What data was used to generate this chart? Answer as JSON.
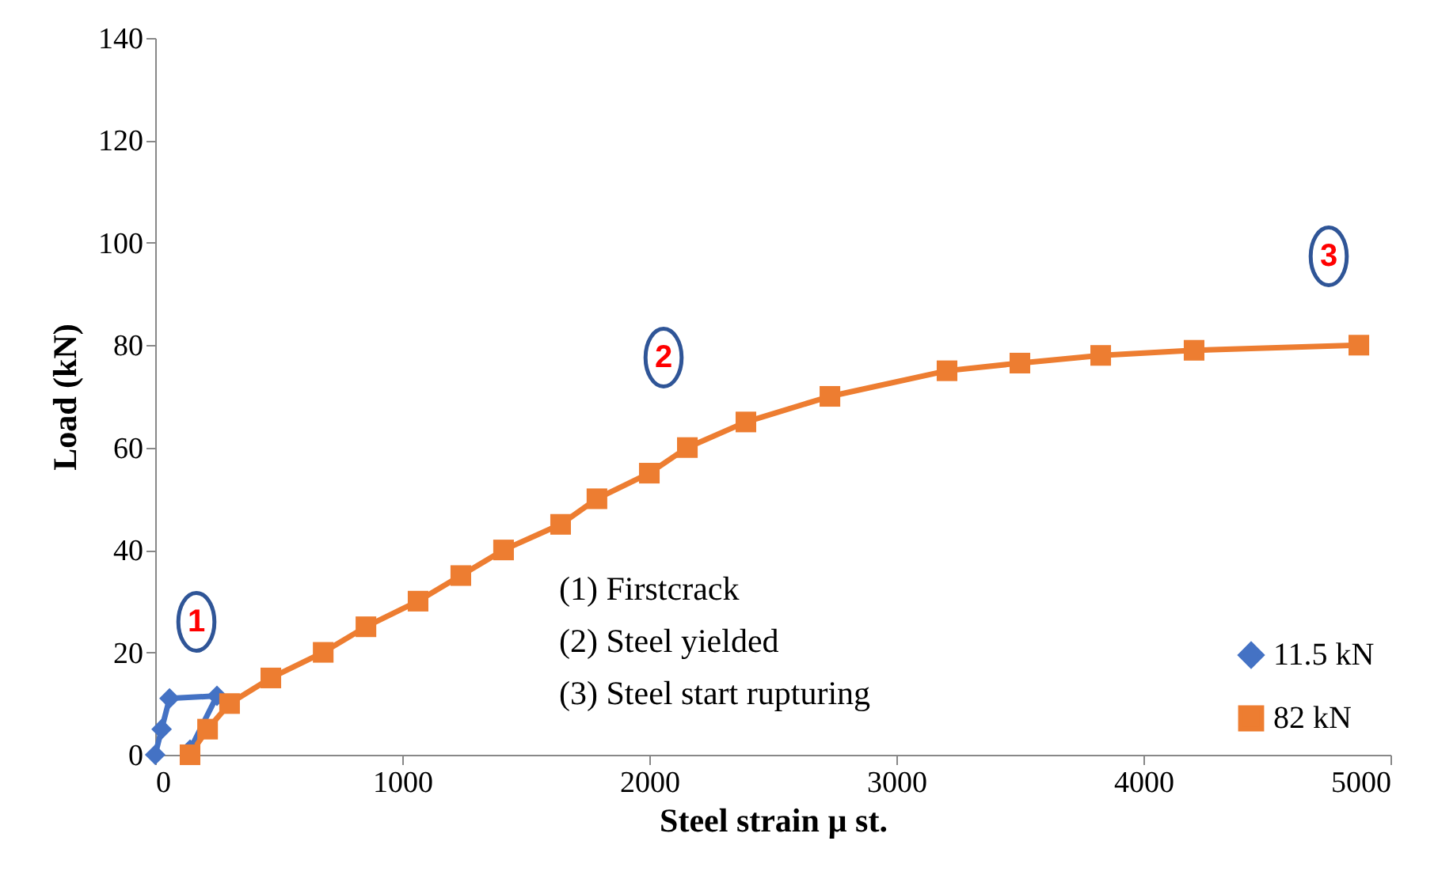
{
  "chart_data": {
    "type": "line",
    "xlabel": "Steel strain µ st.",
    "ylabel": "Load (kN)",
    "xlim": [
      0,
      5000
    ],
    "xticks": [
      0,
      1000,
      2000,
      3000,
      4000,
      5000
    ],
    "ylim": [
      0,
      140
    ],
    "yticks": [
      0,
      20,
      40,
      60,
      80,
      100,
      120,
      140
    ],
    "grid": false,
    "legend": "bottom right",
    "line_style": "solid",
    "series": [
      {
        "name": "11.5 kN",
        "color": "#4472c4",
        "marker": "diamond",
        "x": [
          0,
          26,
          58,
          250,
          141
        ],
        "values": [
          0,
          5,
          11,
          11.5,
          1
        ]
      },
      {
        "name": "82 kN",
        "color": "#ed7d31",
        "marker": "square",
        "x": [
          141,
          212,
          301,
          468,
          680,
          853,
          1064,
          1237,
          1410,
          1641,
          1788,
          2000,
          2154,
          2391,
          2731,
          3205,
          3500,
          3827,
          4205,
          4872
        ],
        "values": [
          0,
          5,
          10,
          15,
          20,
          25,
          30,
          35,
          40,
          45,
          50,
          55,
          60,
          65,
          70,
          75,
          76.5,
          78,
          79,
          80
        ]
      }
    ],
    "annotations": [
      "1",
      "2",
      "3",
      "(1) Firstcrack",
      "(2) Steel yielded",
      "(3) Steel start rupturing"
    ]
  }
}
